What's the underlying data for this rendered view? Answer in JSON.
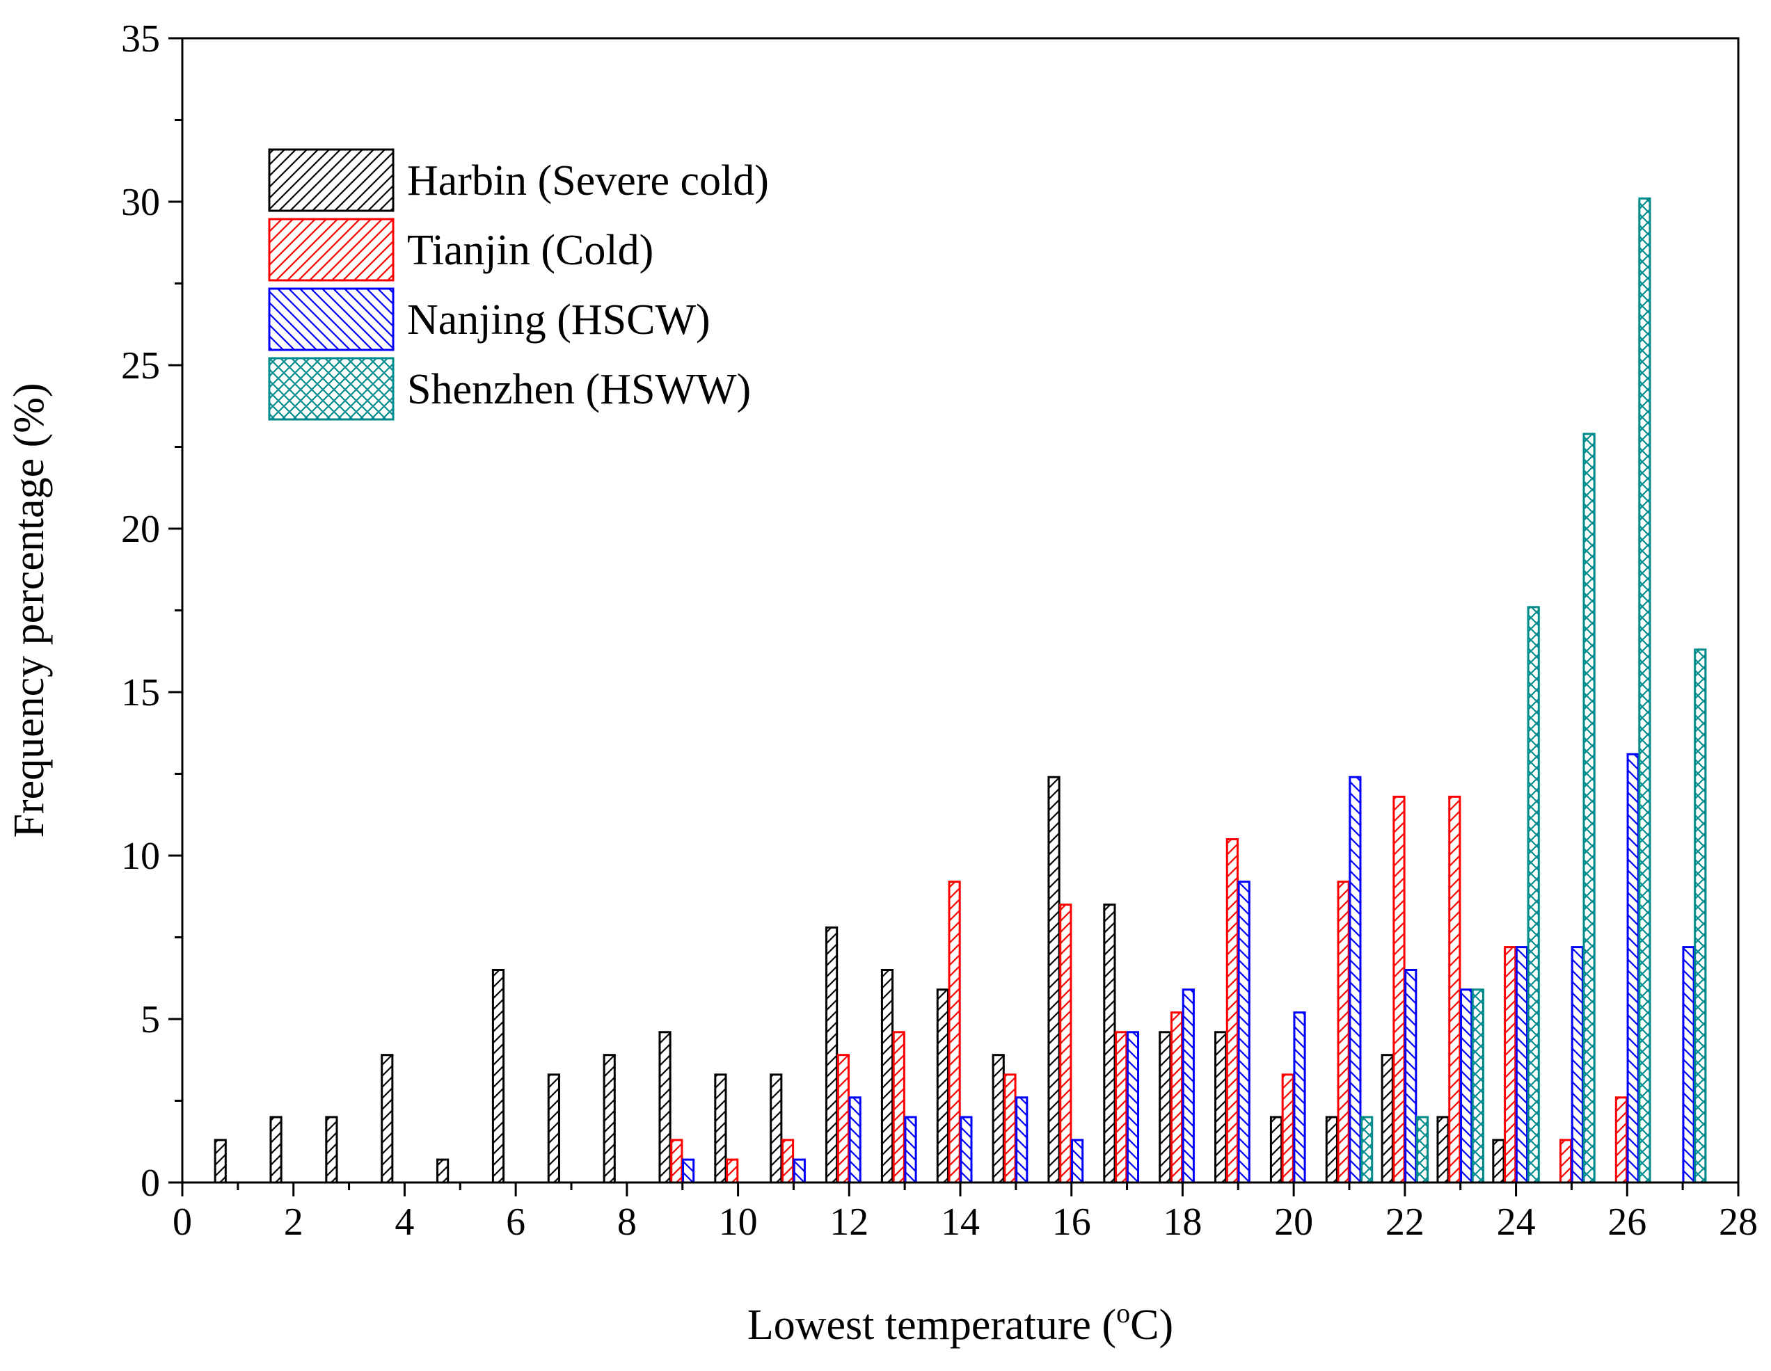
{
  "chart_data": {
    "type": "bar",
    "title": "",
    "xlabel": "Lowest temperature (",
    "xlabel_sup": "o",
    "xlabel_unit": "C)",
    "ylabel": "Frequency percentage (%)",
    "xlim": [
      0,
      28
    ],
    "ylim": [
      0,
      35
    ],
    "x_ticks": [
      "0",
      "2",
      "4",
      "6",
      "8",
      "10",
      "12",
      "14",
      "16",
      "18",
      "20",
      "22",
      "24",
      "26",
      "28"
    ],
    "y_ticks": [
      "0",
      "5",
      "10",
      "15",
      "20",
      "25",
      "30",
      "35"
    ],
    "bin_centers": [
      1,
      2,
      3,
      4,
      5,
      6,
      7,
      8,
      9,
      10,
      11,
      12,
      13,
      14,
      15,
      16,
      17,
      18,
      19,
      20,
      21,
      22,
      23,
      24,
      25,
      26,
      27
    ],
    "legend_position": "upper-left",
    "series": [
      {
        "name": "Harbin (Severe cold)",
        "color": "#000000",
        "pattern": "diag-right",
        "values": [
          1.3,
          2.0,
          2.0,
          3.9,
          0.7,
          6.5,
          3.3,
          3.9,
          4.6,
          3.3,
          3.3,
          7.8,
          6.5,
          5.9,
          3.9,
          12.4,
          8.5,
          4.6,
          4.6,
          2.0,
          2.0,
          3.9,
          2.0,
          1.3,
          0,
          0,
          0
        ]
      },
      {
        "name": "Tianjin (Cold)",
        "color": "#ff0000",
        "pattern": "diag-right",
        "values": [
          0,
          0,
          0,
          0,
          0,
          0,
          0,
          0,
          1.3,
          0.7,
          1.3,
          3.9,
          4.6,
          9.2,
          3.3,
          8.5,
          4.6,
          5.2,
          10.5,
          3.3,
          9.2,
          11.8,
          11.8,
          7.2,
          1.3,
          2.6,
          0
        ]
      },
      {
        "name": "Nanjing (HSCW)",
        "color": "#0000ff",
        "pattern": "diag-left",
        "values": [
          0,
          0,
          0,
          0,
          0,
          0,
          0,
          0,
          0.7,
          0,
          0.7,
          2.6,
          2.0,
          2.0,
          2.6,
          1.3,
          4.6,
          5.9,
          9.2,
          5.2,
          12.4,
          6.5,
          5.9,
          7.2,
          7.2,
          13.1,
          7.2
        ]
      },
      {
        "name": "Shenzhen (HSWW)",
        "color": "#008b8b",
        "pattern": "cross",
        "values": [
          0,
          0,
          0,
          0,
          0,
          0,
          0,
          0,
          0,
          0,
          0,
          0,
          0,
          0,
          0,
          0,
          0,
          0,
          0,
          0,
          2.0,
          2.0,
          5.9,
          17.6,
          22.9,
          30.1,
          16.3
        ]
      }
    ]
  }
}
